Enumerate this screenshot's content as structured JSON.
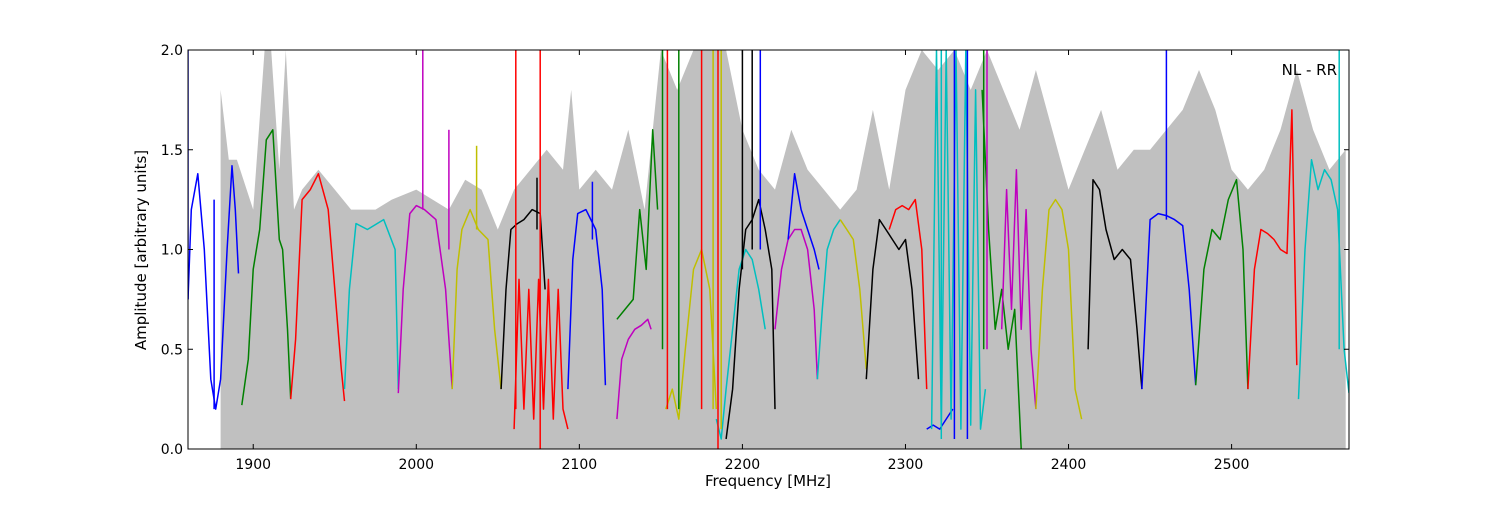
{
  "chart_data": {
    "type": "line",
    "title": "",
    "annotation": "NL - RR",
    "xlabel": "Frequency [MHz]",
    "ylabel": "Amplitude [arbitrary units]",
    "xlim": [
      1860,
      2572
    ],
    "ylim": [
      0.0,
      2.0
    ],
    "xticks": [
      1900,
      2000,
      2100,
      2200,
      2300,
      2400,
      2500
    ],
    "yticks": [
      0.0,
      0.5,
      1.0,
      1.5,
      2.0
    ],
    "xtick_labels": [
      "1900",
      "2000",
      "2100",
      "2200",
      "2300",
      "2400",
      "2500"
    ],
    "ytick_labels": [
      "0.0",
      "0.5",
      "1.0",
      "1.5",
      "2.0"
    ],
    "grid": false,
    "legend": "none",
    "colors": {
      "blue": "#0000ff",
      "green": "#008000",
      "red": "#ff0000",
      "cyan": "#00bfbf",
      "magenta": "#bf00bf",
      "yellow": "#bfbf00",
      "black": "#000000",
      "background_band": "#c0c0c0"
    },
    "background_band": {
      "x": [
        1880,
        1885,
        1890,
        1900,
        1907,
        1911,
        1916,
        1920,
        1925,
        1930,
        1940,
        1950,
        1960,
        1975,
        1985,
        2000,
        2010,
        2020,
        2030,
        2040,
        2050,
        2060,
        2070,
        2080,
        2090,
        2095,
        2100,
        2110,
        2120,
        2130,
        2140,
        2150,
        2160,
        2170,
        2180,
        2190,
        2200,
        2210,
        2220,
        2230,
        2240,
        2250,
        2260,
        2270,
        2280,
        2290,
        2300,
        2310,
        2320,
        2330,
        2340,
        2350,
        2360,
        2370,
        2380,
        2390,
        2400,
        2410,
        2420,
        2430,
        2440,
        2450,
        2460,
        2470,
        2480,
        2490,
        2500,
        2510,
        2520,
        2530,
        2540,
        2550,
        2560,
        2570
      ],
      "y": [
        1.8,
        1.45,
        1.45,
        1.2,
        2.0,
        2.0,
        1.4,
        2.0,
        1.2,
        1.3,
        1.4,
        1.3,
        1.2,
        1.2,
        1.25,
        1.3,
        1.25,
        1.2,
        1.35,
        1.3,
        1.1,
        1.3,
        1.4,
        1.5,
        1.4,
        1.8,
        1.3,
        1.4,
        1.3,
        1.6,
        1.2,
        2.0,
        1.8,
        2.0,
        2.0,
        2.0,
        1.6,
        1.4,
        1.3,
        1.6,
        1.4,
        1.3,
        1.2,
        1.3,
        1.7,
        1.3,
        1.8,
        2.0,
        1.9,
        2.0,
        1.8,
        2.0,
        1.8,
        1.6,
        1.9,
        1.6,
        1.3,
        1.5,
        1.7,
        1.4,
        1.5,
        1.5,
        1.6,
        1.7,
        1.9,
        1.7,
        1.4,
        1.3,
        1.4,
        1.6,
        1.9,
        1.6,
        1.4,
        1.5
      ]
    },
    "series": [
      {
        "color": "blue",
        "x": [
          1860,
          1862,
          1866,
          1870,
          1874,
          1877,
          1880,
          1884,
          1887,
          1889,
          1891
        ],
        "y": [
          0.75,
          1.2,
          1.38,
          1.0,
          0.35,
          0.2,
          0.35,
          1.0,
          1.42,
          1.2,
          0.88
        ]
      },
      {
        "color": "green",
        "x": [
          1893,
          1897,
          1900,
          1904,
          1908,
          1912,
          1916,
          1918,
          1921,
          1923
        ],
        "y": [
          0.22,
          0.45,
          0.9,
          1.1,
          1.55,
          1.6,
          1.05,
          1.0,
          0.6,
          0.25
        ]
      },
      {
        "color": "red",
        "x": [
          1923,
          1926,
          1930,
          1935,
          1940,
          1946,
          1950,
          1954,
          1956
        ],
        "y": [
          0.25,
          0.55,
          1.25,
          1.3,
          1.38,
          1.2,
          0.8,
          0.4,
          0.24
        ]
      },
      {
        "color": "cyan",
        "x": [
          1956,
          1959,
          1963,
          1970,
          1980,
          1987,
          1989
        ],
        "y": [
          0.3,
          0.8,
          1.13,
          1.1,
          1.15,
          1.0,
          0.3
        ]
      },
      {
        "color": "magenta",
        "x": [
          1989,
          1992,
          1996,
          2000,
          2005,
          2012,
          2018,
          2022
        ],
        "y": [
          0.28,
          0.8,
          1.18,
          1.22,
          1.2,
          1.15,
          0.8,
          0.3
        ]
      },
      {
        "color": "yellow",
        "x": [
          2022,
          2025,
          2028,
          2033,
          2038,
          2044,
          2048,
          2052
        ],
        "y": [
          0.3,
          0.9,
          1.1,
          1.2,
          1.1,
          1.05,
          0.6,
          0.3
        ]
      },
      {
        "color": "black",
        "x": [
          2052,
          2055,
          2058,
          2062,
          2066,
          2071,
          2076,
          2079
        ],
        "y": [
          0.3,
          0.8,
          1.1,
          1.13,
          1.15,
          1.2,
          1.18,
          0.8
        ]
      },
      {
        "color": "red",
        "x": [
          2060,
          2063,
          2066,
          2069,
          2072,
          2075,
          2078,
          2081,
          2084,
          2087,
          2090,
          2093
        ],
        "y": [
          0.1,
          0.85,
          0.2,
          0.8,
          0.15,
          0.85,
          0.2,
          0.85,
          0.15,
          0.8,
          0.2,
          0.1
        ]
      },
      {
        "color": "blue",
        "x": [
          2093,
          2096,
          2099,
          2104,
          2110,
          2114,
          2116
        ],
        "y": [
          0.3,
          0.95,
          1.18,
          1.2,
          1.1,
          0.8,
          0.32
        ]
      },
      {
        "color": "magenta",
        "x": [
          2123,
          2126,
          2130,
          2134,
          2138,
          2142,
          2144
        ],
        "y": [
          0.15,
          0.45,
          0.55,
          0.6,
          0.62,
          0.65,
          0.6
        ]
      },
      {
        "color": "green",
        "x": [
          2123,
          2128,
          2133,
          2137,
          2141,
          2145,
          2148
        ],
        "y": [
          0.65,
          0.7,
          0.75,
          1.2,
          0.9,
          1.6,
          1.2
        ]
      },
      {
        "color": "yellow",
        "x": [
          2153,
          2157,
          2161,
          2165,
          2170,
          2175,
          2180,
          2184
        ],
        "y": [
          0.2,
          0.3,
          0.15,
          0.5,
          0.9,
          1.0,
          0.8,
          0.2
        ]
      },
      {
        "color": "cyan",
        "x": [
          2184,
          2187,
          2190,
          2194,
          2198,
          2202,
          2206,
          2210,
          2214
        ],
        "y": [
          0.15,
          0.05,
          0.3,
          0.6,
          0.9,
          1.0,
          0.95,
          0.8,
          0.6
        ]
      },
      {
        "color": "black",
        "x": [
          2190,
          2194,
          2198,
          2202,
          2206,
          2210,
          2214,
          2218,
          2220
        ],
        "y": [
          0.05,
          0.3,
          0.8,
          1.1,
          1.15,
          1.25,
          1.1,
          0.9,
          0.2
        ]
      },
      {
        "color": "magenta",
        "x": [
          2220,
          2224,
          2228,
          2232,
          2236,
          2240,
          2244,
          2246
        ],
        "y": [
          0.6,
          0.9,
          1.05,
          1.1,
          1.1,
          1.0,
          0.7,
          0.35
        ]
      },
      {
        "color": "blue",
        "x": [
          2228,
          2232,
          2236,
          2240,
          2244,
          2247
        ],
        "y": [
          1.05,
          1.38,
          1.2,
          1.1,
          1.0,
          0.9
        ]
      },
      {
        "color": "cyan",
        "x": [
          2246,
          2249,
          2252,
          2256,
          2260
        ],
        "y": [
          0.35,
          0.7,
          1.0,
          1.1,
          1.15
        ]
      },
      {
        "color": "yellow",
        "x": [
          2260,
          2264,
          2268,
          2272,
          2276
        ],
        "y": [
          1.15,
          1.1,
          1.05,
          0.8,
          0.4
        ]
      },
      {
        "color": "black",
        "x": [
          2276,
          2280,
          2284,
          2288,
          2292,
          2296,
          2300,
          2304,
          2308
        ],
        "y": [
          0.35,
          0.9,
          1.15,
          1.1,
          1.05,
          1.0,
          1.05,
          0.8,
          0.35
        ]
      },
      {
        "color": "red",
        "x": [
          2290,
          2294,
          2298,
          2302,
          2306,
          2310,
          2313
        ],
        "y": [
          1.1,
          1.2,
          1.22,
          1.2,
          1.25,
          1.0,
          0.3
        ]
      },
      {
        "color": "blue",
        "x": [
          2313,
          2317,
          2321,
          2325,
          2329
        ],
        "y": [
          0.1,
          0.12,
          0.1,
          0.15,
          0.2
        ]
      },
      {
        "color": "cyan",
        "x": [
          2316,
          2319,
          2322,
          2325,
          2328,
          2331,
          2334,
          2337,
          2340,
          2343,
          2346,
          2349
        ],
        "y": [
          0.1,
          2.0,
          0.1,
          2.0,
          0.15,
          2.0,
          0.1,
          2.0,
          0.12,
          1.8,
          0.1,
          0.3
        ]
      },
      {
        "color": "green",
        "x": [
          2347,
          2351,
          2355,
          2359,
          2363,
          2367,
          2371
        ],
        "y": [
          1.8,
          1.1,
          0.6,
          0.8,
          0.5,
          0.7,
          0.0
        ]
      },
      {
        "color": "magenta",
        "x": [
          2359,
          2362,
          2365,
          2368,
          2371,
          2374,
          2377,
          2380
        ],
        "y": [
          0.6,
          1.3,
          0.7,
          1.4,
          0.6,
          1.2,
          0.5,
          0.2
        ]
      },
      {
        "color": "yellow",
        "x": [
          2380,
          2384,
          2388,
          2392,
          2396,
          2400,
          2404,
          2408
        ],
        "y": [
          0.2,
          0.8,
          1.2,
          1.25,
          1.2,
          1.0,
          0.3,
          0.15
        ]
      },
      {
        "color": "black",
        "x": [
          2412,
          2415,
          2419,
          2423,
          2428,
          2433,
          2438,
          2442,
          2445
        ],
        "y": [
          0.5,
          1.35,
          1.3,
          1.1,
          0.95,
          1.0,
          0.95,
          0.6,
          0.3
        ]
      },
      {
        "color": "blue",
        "x": [
          2445,
          2450,
          2455,
          2460,
          2465,
          2470,
          2474,
          2478
        ],
        "y": [
          0.3,
          1.15,
          1.18,
          1.17,
          1.15,
          1.12,
          0.8,
          0.32
        ]
      },
      {
        "color": "green",
        "x": [
          2478,
          2483,
          2488,
          2493,
          2498,
          2503,
          2507,
          2510
        ],
        "y": [
          0.32,
          0.9,
          1.1,
          1.05,
          1.25,
          1.35,
          1.0,
          0.3
        ]
      },
      {
        "color": "red",
        "x": [
          2510,
          2514,
          2518,
          2522,
          2526,
          2530,
          2534,
          2537,
          2540
        ],
        "y": [
          0.3,
          0.9,
          1.1,
          1.08,
          1.05,
          1.0,
          0.98,
          1.7,
          0.42
        ]
      },
      {
        "color": "cyan",
        "x": [
          2541,
          2545,
          2549,
          2553,
          2557,
          2561,
          2565,
          2569,
          2572
        ],
        "y": [
          0.25,
          1.0,
          1.45,
          1.3,
          1.4,
          1.35,
          1.2,
          0.5,
          0.28
        ]
      }
    ],
    "spikes": [
      {
        "color": "blue",
        "x": 1860,
        "y0": 0.75,
        "y1": 2.0
      },
      {
        "color": "blue",
        "x": 1876,
        "y0": 0.2,
        "y1": 1.25
      },
      {
        "color": "magenta",
        "x": 2004,
        "y0": 1.2,
        "y1": 2.0
      },
      {
        "color": "magenta",
        "x": 2020,
        "y0": 1.0,
        "y1": 1.6
      },
      {
        "color": "yellow",
        "x": 2037,
        "y0": 1.1,
        "y1": 1.52
      },
      {
        "color": "black",
        "x": 2074,
        "y0": 1.1,
        "y1": 1.36
      },
      {
        "color": "red",
        "x": 2061,
        "y0": 0.2,
        "y1": 2.0
      },
      {
        "color": "red",
        "x": 2076,
        "y0": 0.0,
        "y1": 2.0
      },
      {
        "color": "blue",
        "x": 2108,
        "y0": 1.05,
        "y1": 1.34
      },
      {
        "color": "green",
        "x": 2151,
        "y0": 0.5,
        "y1": 2.0
      },
      {
        "color": "red",
        "x": 2154,
        "y0": 0.2,
        "y1": 2.0
      },
      {
        "color": "green",
        "x": 2161,
        "y0": 0.2,
        "y1": 2.0
      },
      {
        "color": "red",
        "x": 2175,
        "y0": 0.2,
        "y1": 2.0
      },
      {
        "color": "yellow",
        "x": 2182,
        "y0": 0.2,
        "y1": 2.0
      },
      {
        "color": "red",
        "x": 2185,
        "y0": 0.0,
        "y1": 2.0
      },
      {
        "color": "yellow",
        "x": 2187,
        "y0": 0.1,
        "y1": 2.0
      },
      {
        "color": "black",
        "x": 2200,
        "y0": 0.9,
        "y1": 2.0
      },
      {
        "color": "black",
        "x": 2206,
        "y0": 1.0,
        "y1": 2.0
      },
      {
        "color": "blue",
        "x": 2211,
        "y0": 1.0,
        "y1": 2.0
      },
      {
        "color": "cyan",
        "x": 2322,
        "y0": 0.05,
        "y1": 2.0
      },
      {
        "color": "blue",
        "x": 2330,
        "y0": 0.05,
        "y1": 2.0
      },
      {
        "color": "blue",
        "x": 2338,
        "y0": 0.05,
        "y1": 2.0
      },
      {
        "color": "green",
        "x": 2348,
        "y0": 0.5,
        "y1": 2.0
      },
      {
        "color": "magenta",
        "x": 2350,
        "y0": 0.5,
        "y1": 2.0
      },
      {
        "color": "blue",
        "x": 2460,
        "y0": 1.15,
        "y1": 2.0
      },
      {
        "color": "cyan",
        "x": 2566,
        "y0": 0.5,
        "y1": 2.0
      }
    ]
  }
}
